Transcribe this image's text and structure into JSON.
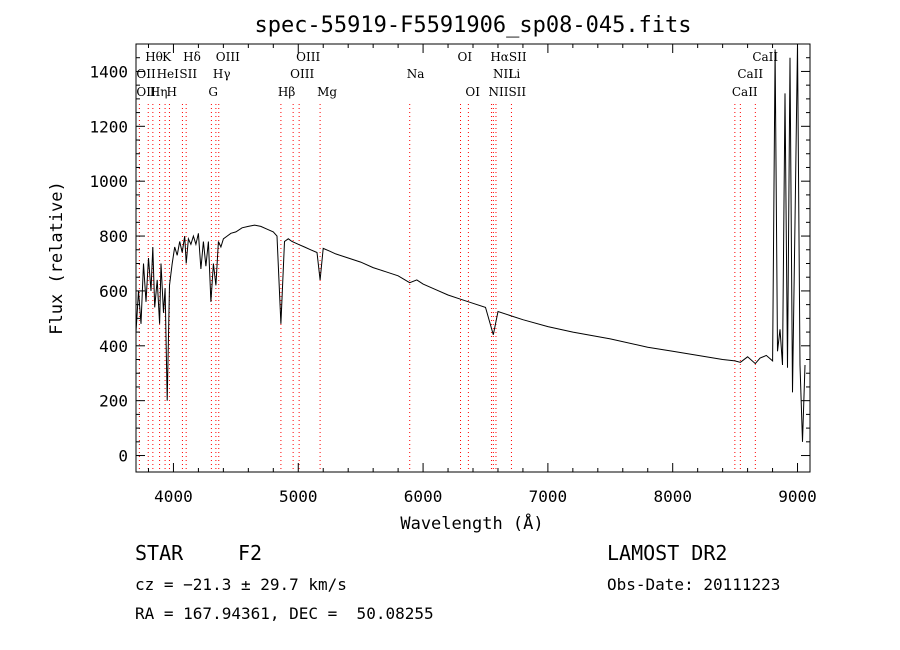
{
  "chart_data": {
    "type": "line",
    "title": "spec-55919-F5591906_sp08-045.fits",
    "xlabel": "Wavelength (Å)",
    "ylabel": "Flux (relative)",
    "xlim": [
      3700,
      9100
    ],
    "ylim": [
      -60,
      1500
    ],
    "x_ticks": [
      4000,
      5000,
      6000,
      7000,
      8000,
      9000
    ],
    "y_ticks": [
      0,
      200,
      400,
      600,
      800,
      1000,
      1200,
      1400
    ],
    "grid": false,
    "line_color": "#000000",
    "marker_color": "#ff0000",
    "series": [
      {
        "x": [
          3700,
          3720,
          3740,
          3760,
          3780,
          3800,
          3820,
          3835,
          3850,
          3870,
          3889,
          3900,
          3920,
          3933,
          3950,
          3968,
          3990,
          4010,
          4030,
          4050,
          4070,
          4090,
          4102,
          4120,
          4140,
          4160,
          4180,
          4200,
          4220,
          4240,
          4260,
          4280,
          4300,
          4320,
          4340,
          4360,
          4380,
          4400,
          4430,
          4460,
          4500,
          4550,
          4600,
          4650,
          4700,
          4750,
          4800,
          4830,
          4861,
          4890,
          4920,
          4950,
          5000,
          5050,
          5100,
          5150,
          5175,
          5200,
          5250,
          5300,
          5400,
          5500,
          5600,
          5700,
          5800,
          5893,
          5950,
          6000,
          6100,
          6200,
          6300,
          6400,
          6500,
          6563,
          6600,
          6700,
          6800,
          7000,
          7200,
          7500,
          7800,
          8000,
          8200,
          8400,
          8498,
          8542,
          8600,
          8662,
          8700,
          8750,
          8800,
          8820,
          8840,
          8860,
          8880,
          8900,
          8920,
          8940,
          8960,
          8980,
          9000,
          9020,
          9040,
          9060
        ],
        "y": [
          450,
          600,
          480,
          700,
          560,
          720,
          600,
          760,
          540,
          640,
          480,
          700,
          520,
          610,
          200,
          620,
          700,
          760,
          730,
          780,
          740,
          800,
          700,
          790,
          770,
          800,
          770,
          810,
          680,
          780,
          690,
          780,
          560,
          700,
          620,
          780,
          760,
          790,
          800,
          810,
          815,
          830,
          835,
          840,
          835,
          825,
          815,
          800,
          480,
          780,
          790,
          780,
          770,
          760,
          750,
          740,
          640,
          755,
          745,
          735,
          720,
          705,
          685,
          670,
          655,
          630,
          640,
          625,
          605,
          585,
          570,
          555,
          540,
          440,
          525,
          510,
          495,
          470,
          450,
          425,
          395,
          380,
          365,
          350,
          345,
          340,
          360,
          335,
          355,
          365,
          345,
          1480,
          380,
          460,
          330,
          1320,
          320,
          1450,
          230,
          850,
          1500,
          330,
          50,
          330
        ]
      }
    ],
    "line_markers": [
      {
        "label": "Hθ",
        "wl": 3798,
        "row": 0
      },
      {
        "label": "K",
        "wl": 3933,
        "row": 0
      },
      {
        "label": "Hδ",
        "wl": 4102,
        "row": 0
      },
      {
        "label": "OIII",
        "wl": 4363,
        "row": 0
      },
      {
        "label": "OIII",
        "wl": 5007,
        "row": 0
      },
      {
        "label": "OI",
        "wl": 6300,
        "row": 0
      },
      {
        "label": "HαSII",
        "wl": 6563,
        "row": 0
      },
      {
        "label": "CaII",
        "wl": 8662,
        "row": 0
      },
      {
        "label": "OII",
        "wl": 3727,
        "row": 1
      },
      {
        "label": "HeI",
        "wl": 3889,
        "row": 1
      },
      {
        "label": "SII",
        "wl": 4072,
        "row": 1
      },
      {
        "label": "Hγ",
        "wl": 4340,
        "row": 1
      },
      {
        "label": "OIII",
        "wl": 4959,
        "row": 1
      },
      {
        "label": "Na",
        "wl": 5893,
        "row": 1
      },
      {
        "label": "NII",
        "wl": 6584,
        "row": 1
      },
      {
        "label": "Li",
        "wl": 6708,
        "row": 1
      },
      {
        "label": "CaII",
        "wl": 8542,
        "row": 1
      },
      {
        "label": "OII",
        "wl": 3727,
        "row": 2
      },
      {
        "label": "Hη",
        "wl": 3835,
        "row": 2
      },
      {
        "label": "H",
        "wl": 3968,
        "row": 2
      },
      {
        "label": "G",
        "wl": 4304,
        "row": 2
      },
      {
        "label": "Hβ",
        "wl": 4861,
        "row": 2
      },
      {
        "label": "Mg",
        "wl": 5175,
        "row": 2
      },
      {
        "label": "OI",
        "wl": 6363,
        "row": 2
      },
      {
        "label": "NIISII",
        "wl": 6548,
        "row": 2
      },
      {
        "label": "CaII",
        "wl": 8498,
        "row": 2
      }
    ]
  },
  "info": {
    "object_class": "STAR",
    "subclass": "F2",
    "survey": "LAMOST DR2",
    "cz": "cz = −21.3 ± 29.7 km/s",
    "obs_date": "Obs-Date: 20111223",
    "coords": "RA = 167.94361, DEC =  50.08255"
  }
}
